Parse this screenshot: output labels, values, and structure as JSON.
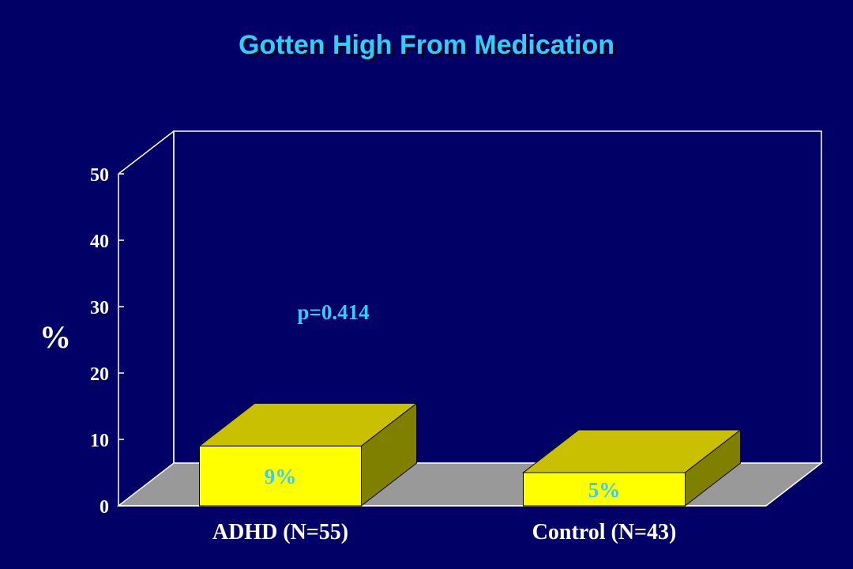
{
  "chart_data": {
    "type": "bar",
    "title": "Gotten High From Medication",
    "ylabel": "%",
    "xlabel": "",
    "categories": [
      "ADHD (N=55)",
      "Control (N=43)"
    ],
    "values": [
      9,
      5
    ],
    "data_labels": [
      "9%",
      "5%"
    ],
    "ylim": [
      0,
      50
    ],
    "yticks": [
      0,
      10,
      20,
      30,
      40,
      50
    ],
    "ytick_labels": [
      "0",
      "10",
      "20",
      "30",
      "40",
      "50"
    ],
    "annotation": "p=0.414",
    "grid": false,
    "legend": "none",
    "style": "3d-bar"
  },
  "colors": {
    "background": "#000066",
    "title": "#33ccff",
    "bar_front": "#ffff00",
    "bar_top": "#c8c000",
    "bar_side": "#808000",
    "floor": "#999999",
    "axis": "#ffffff",
    "label_accent": "#33ccff"
  }
}
